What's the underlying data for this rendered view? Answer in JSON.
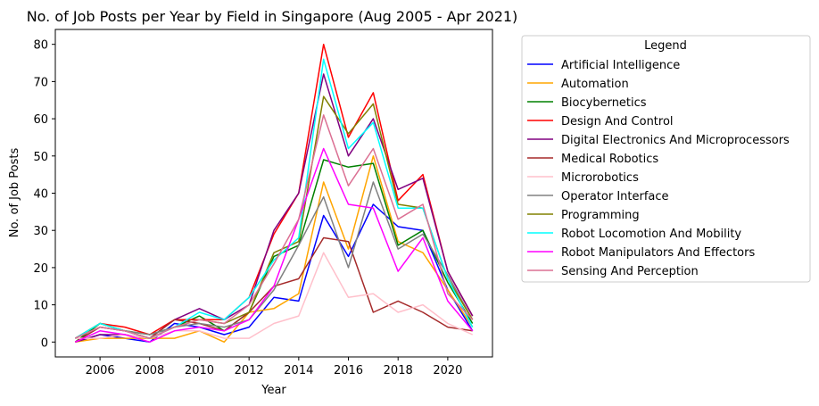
{
  "chart_data": {
    "type": "line",
    "title": "No. of Job Posts per Year by Field in Singapore (Aug 2005 - Apr 2021)",
    "xlabel": "Year",
    "ylabel": "No. of Job Posts",
    "x": [
      2005,
      2006,
      2007,
      2008,
      2009,
      2010,
      2011,
      2012,
      2013,
      2014,
      2015,
      2016,
      2017,
      2018,
      2019,
      2020,
      2021
    ],
    "xlim": [
      2004.2,
      2021.8
    ],
    "ylim": [
      -4,
      84
    ],
    "xticks": [
      2006,
      2008,
      2010,
      2012,
      2014,
      2016,
      2018,
      2020
    ],
    "yticks": [
      0,
      10,
      20,
      30,
      40,
      50,
      60,
      70,
      80
    ],
    "grid": false,
    "legend_title": "Legend",
    "legend_position": "outside-right",
    "series": [
      {
        "name": "Artificial Intelligence",
        "color": "#0000ff",
        "values": [
          0,
          2,
          1,
          0,
          5,
          4,
          2,
          4,
          12,
          11,
          34,
          23,
          37,
          31,
          30,
          14,
          3
        ]
      },
      {
        "name": "Automation",
        "color": "#ffa500",
        "values": [
          0,
          1,
          1,
          1,
          1,
          3,
          0,
          8,
          9,
          13,
          43,
          25,
          50,
          27,
          24,
          14,
          4
        ]
      },
      {
        "name": "Biocybernetics",
        "color": "#008000",
        "values": [
          0,
          5,
          3,
          2,
          4,
          7,
          3,
          8,
          23,
          26,
          49,
          47,
          48,
          26,
          30,
          16,
          5
        ]
      },
      {
        "name": "Design And Control",
        "color": "#ff0000",
        "values": [
          1,
          5,
          4,
          2,
          6,
          6,
          6,
          12,
          29,
          40,
          80,
          55,
          67,
          38,
          45,
          19,
          7
        ]
      },
      {
        "name": "Digital Electronics And Microprocessors",
        "color": "#800080",
        "values": [
          0,
          2,
          2,
          1,
          6,
          9,
          6,
          10,
          30,
          40,
          72,
          50,
          60,
          41,
          44,
          19,
          7
        ]
      },
      {
        "name": "Medical Robotics",
        "color": "#a52a2a",
        "values": [
          0,
          4,
          3,
          1,
          6,
          5,
          3,
          8,
          15,
          17,
          28,
          27,
          8,
          11,
          8,
          4,
          3
        ]
      },
      {
        "name": "Microrobotics",
        "color": "#ffc0cb",
        "values": [
          1,
          1,
          2,
          1,
          3,
          3,
          1,
          1,
          5,
          7,
          24,
          12,
          13,
          8,
          10,
          5,
          2
        ]
      },
      {
        "name": "Operator Interface",
        "color": "#808080",
        "values": [
          1,
          4,
          3,
          2,
          4,
          5,
          4,
          6,
          14,
          26,
          39,
          20,
          43,
          25,
          29,
          18,
          6
        ]
      },
      {
        "name": "Programming",
        "color": "#808000",
        "values": [
          1,
          5,
          3,
          1,
          4,
          6,
          5,
          8,
          24,
          27,
          66,
          56,
          64,
          37,
          36,
          17,
          6
        ]
      },
      {
        "name": "Robot Locomotion And Mobility",
        "color": "#00ffff",
        "values": [
          1,
          5,
          3,
          1,
          4,
          8,
          6,
          12,
          22,
          28,
          76,
          52,
          59,
          36,
          36,
          17,
          4
        ]
      },
      {
        "name": "Robot Manipulators And Effectors",
        "color": "#ff00ff",
        "values": [
          0,
          3,
          2,
          0,
          3,
          4,
          3,
          6,
          15,
          33,
          52,
          37,
          36,
          19,
          28,
          11,
          3
        ]
      },
      {
        "name": "Sensing And Perception",
        "color": "#db7093",
        "values": [
          1,
          4,
          3,
          1,
          4,
          6,
          5,
          10,
          21,
          33,
          61,
          42,
          52,
          33,
          37,
          13,
          6
        ]
      }
    ]
  }
}
